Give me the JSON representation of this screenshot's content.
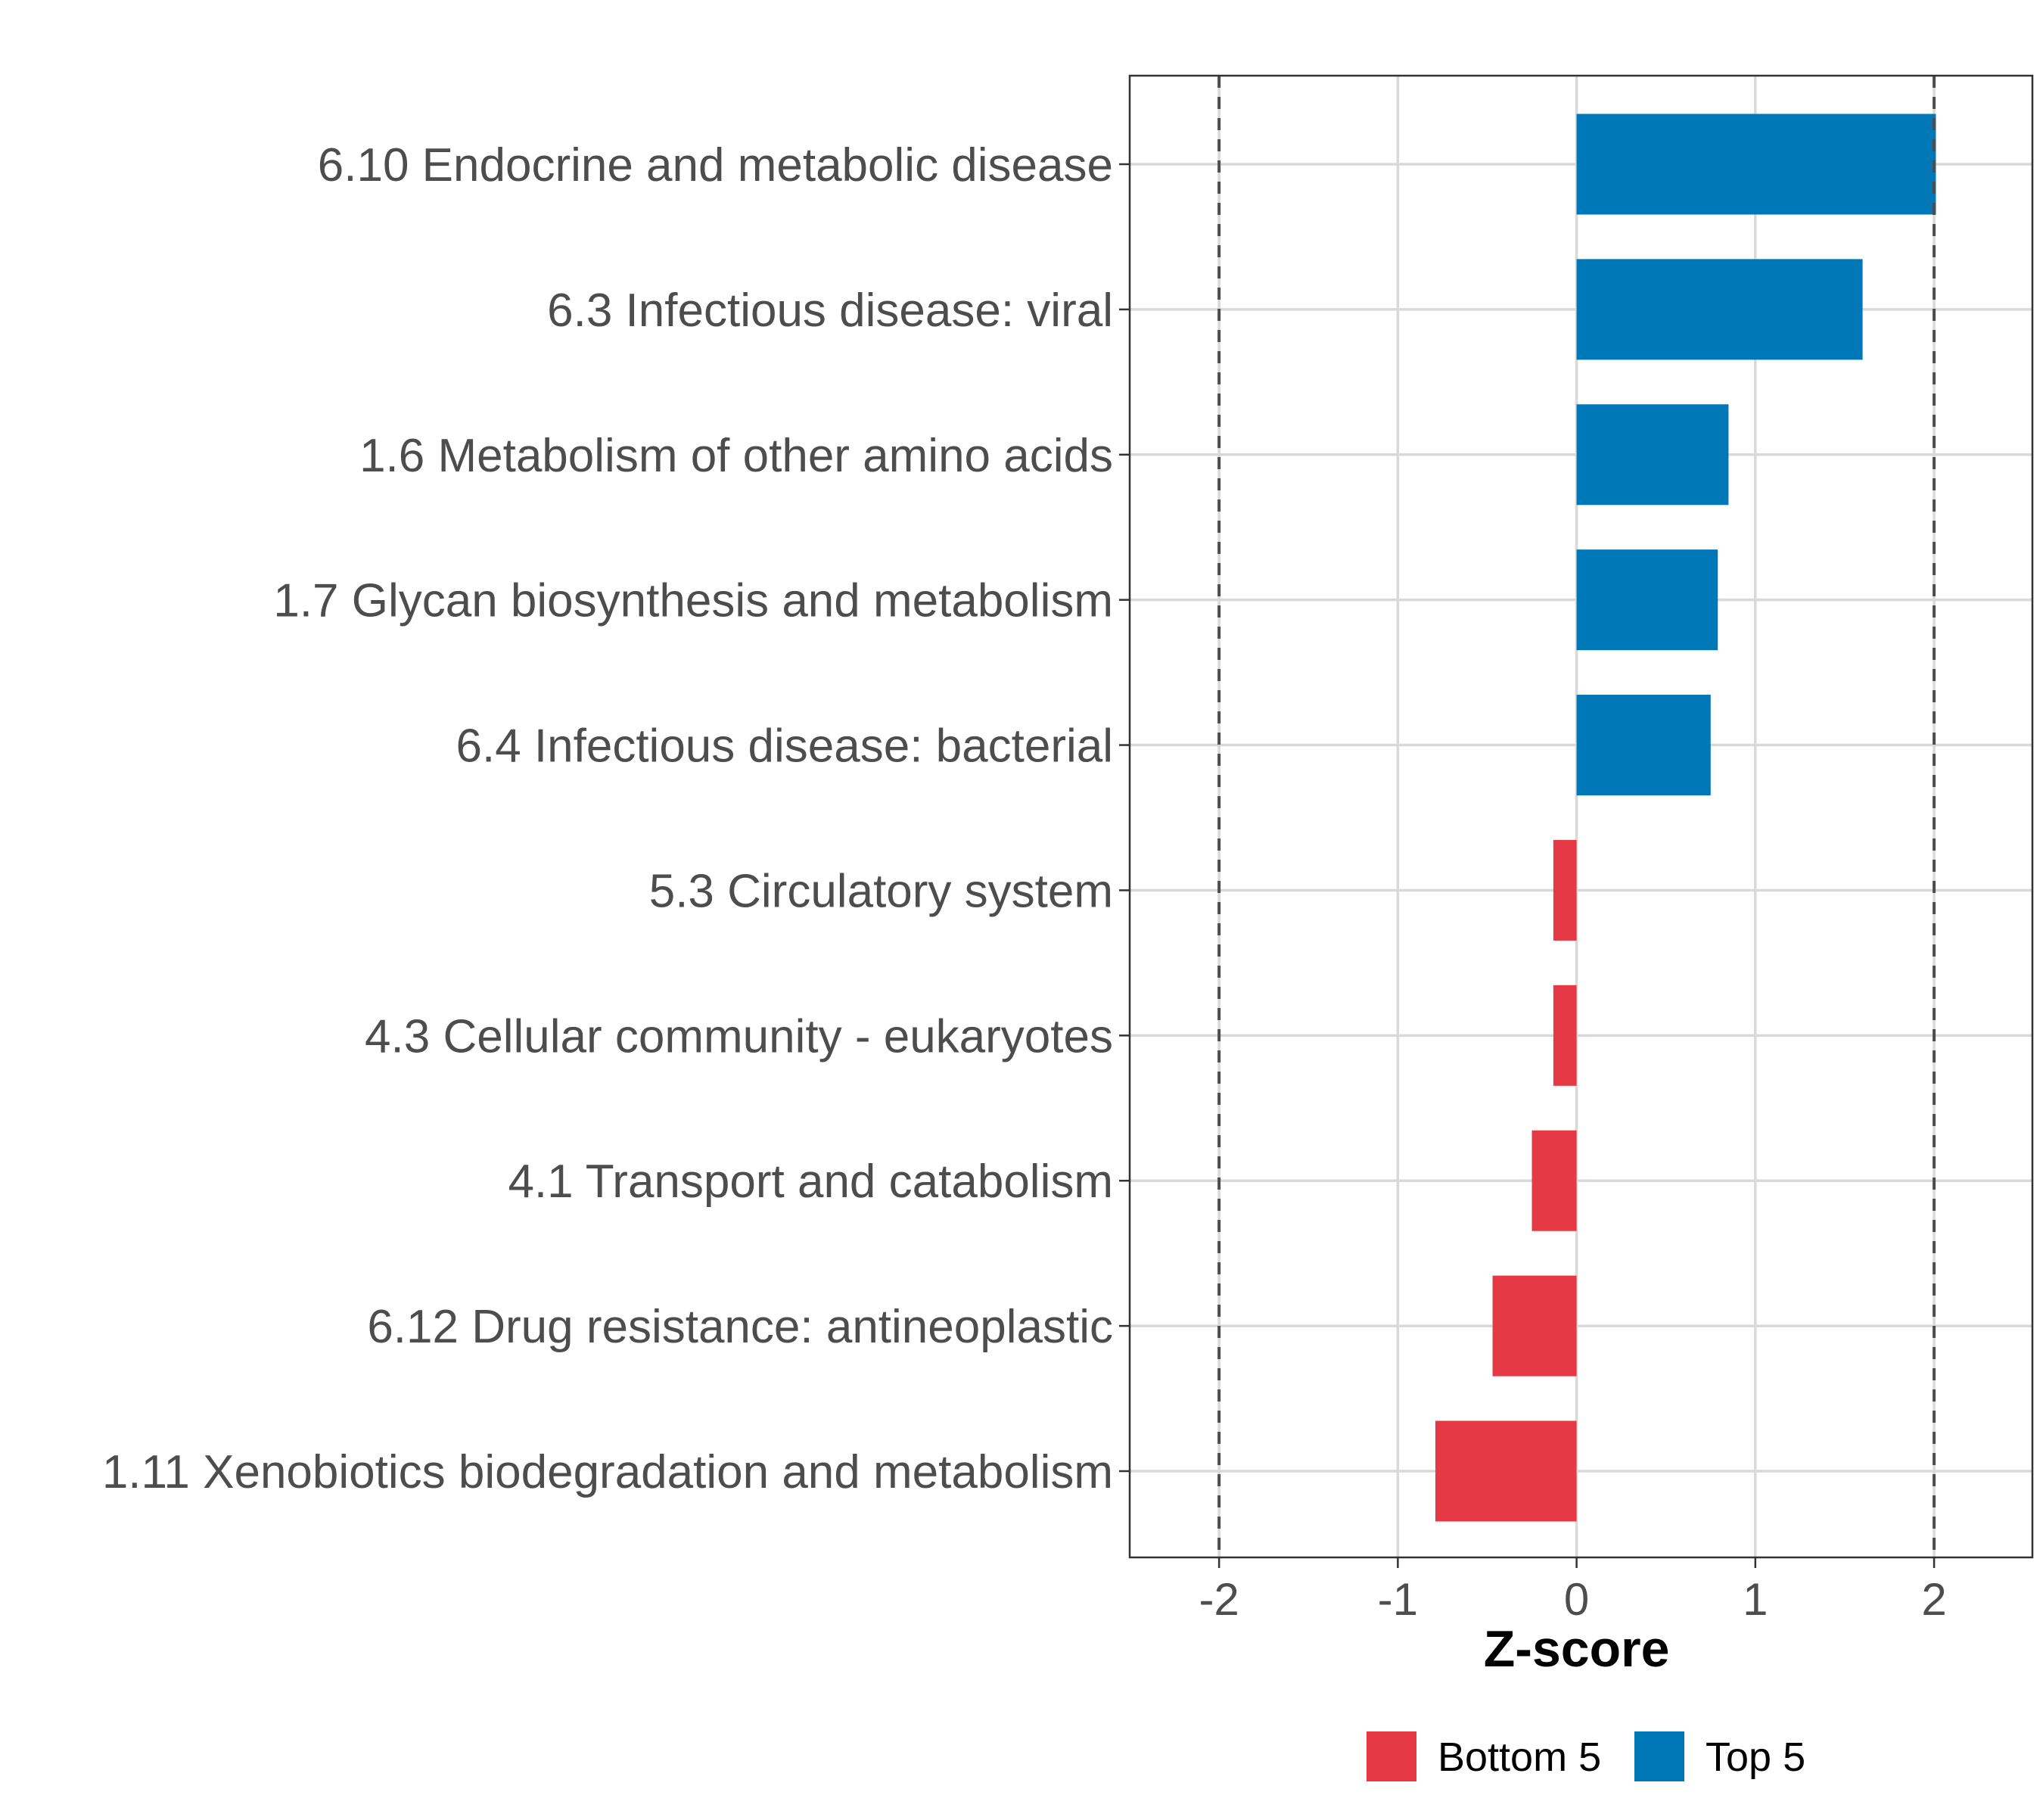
{
  "chart_data": {
    "type": "bar",
    "orientation": "horizontal",
    "title": "",
    "xlabel": "Z-score",
    "ylabel": "",
    "xlim": [
      -2.5,
      2.55
    ],
    "xticks": [
      -2,
      -1,
      0,
      1,
      2
    ],
    "reference_lines": [
      -2,
      2
    ],
    "grid": true,
    "legend_position": "bottom",
    "categories": [
      "6.10 Endocrine and metabolic disease",
      "6.3 Infectious disease: viral",
      "1.6 Metabolism of other amino acids",
      "1.7 Glycan biosynthesis and metabolism",
      "6.4 Infectious disease: bacterial",
      "5.3 Circulatory system",
      "4.3 Cellular community - eukaryotes",
      "4.1 Transport and catabolism",
      "6.12 Drug resistance: antineoplastic",
      "1.11 Xenobiotics biodegradation and metabolism"
    ],
    "values": [
      2.01,
      1.6,
      0.85,
      0.79,
      0.75,
      -0.13,
      -0.13,
      -0.25,
      -0.47,
      -0.79
    ],
    "groups": [
      "Top 5",
      "Top 5",
      "Top 5",
      "Top 5",
      "Top 5",
      "Bottom 5",
      "Bottom 5",
      "Bottom 5",
      "Bottom 5",
      "Bottom 5"
    ],
    "legend": [
      {
        "name": "Bottom 5",
        "color": "#E63946"
      },
      {
        "name": "Top 5",
        "color": "#0077B6"
      }
    ]
  }
}
